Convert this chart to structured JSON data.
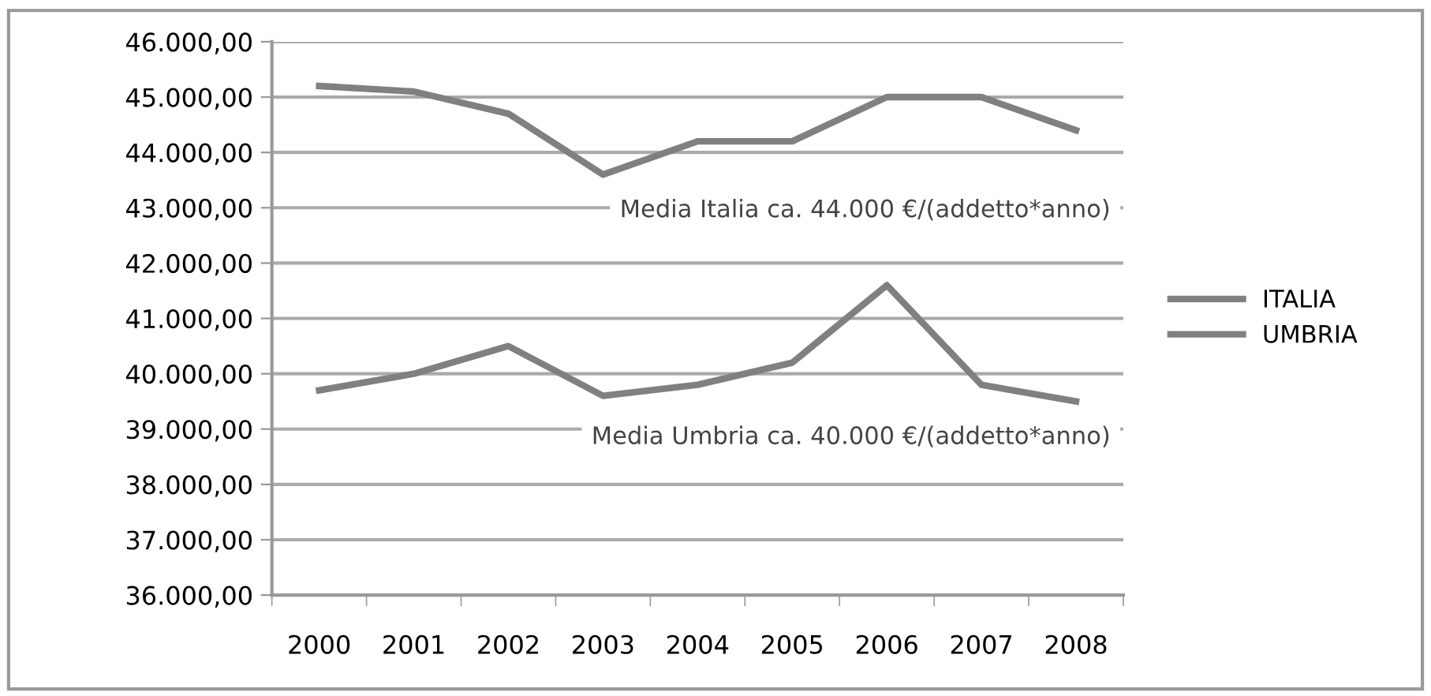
{
  "chart_data": {
    "type": "line",
    "categories": [
      "2000",
      "2001",
      "2002",
      "2003",
      "2004",
      "2005",
      "2006",
      "2007",
      "2008"
    ],
    "series": [
      {
        "name": "ITALIA",
        "color": "#808080",
        "values": [
          45200,
          45100,
          44700,
          43600,
          44200,
          44200,
          45000,
          45000,
          44400
        ]
      },
      {
        "name": "UMBRIA",
        "color": "#808080",
        "values": [
          39700,
          40000,
          40500,
          39600,
          39800,
          40200,
          41600,
          39800,
          39500
        ]
      }
    ],
    "ylim": [
      36000,
      46000
    ],
    "yticks": [
      {
        "value": 36000,
        "label": "36.000,00"
      },
      {
        "value": 37000,
        "label": "37.000,00"
      },
      {
        "value": 38000,
        "label": "38.000,00"
      },
      {
        "value": 39000,
        "label": "39.000,00"
      },
      {
        "value": 40000,
        "label": "40.000,00"
      },
      {
        "value": 41000,
        "label": "41.000,00"
      },
      {
        "value": 42000,
        "label": "42.000,00"
      },
      {
        "value": 43000,
        "label": "43.000,00"
      },
      {
        "value": 44000,
        "label": "44.000,00"
      },
      {
        "value": 45000,
        "label": "45.000,00"
      },
      {
        "value": 46000,
        "label": "46.000,00"
      }
    ],
    "annotations": [
      "Media Italia ca. 44.000 €/(addetto*anno)",
      "Media Umbria ca. 40.000 €/(addetto*anno)"
    ],
    "grid": "y",
    "legend": "right",
    "line_style": "solid",
    "marker": "none"
  }
}
